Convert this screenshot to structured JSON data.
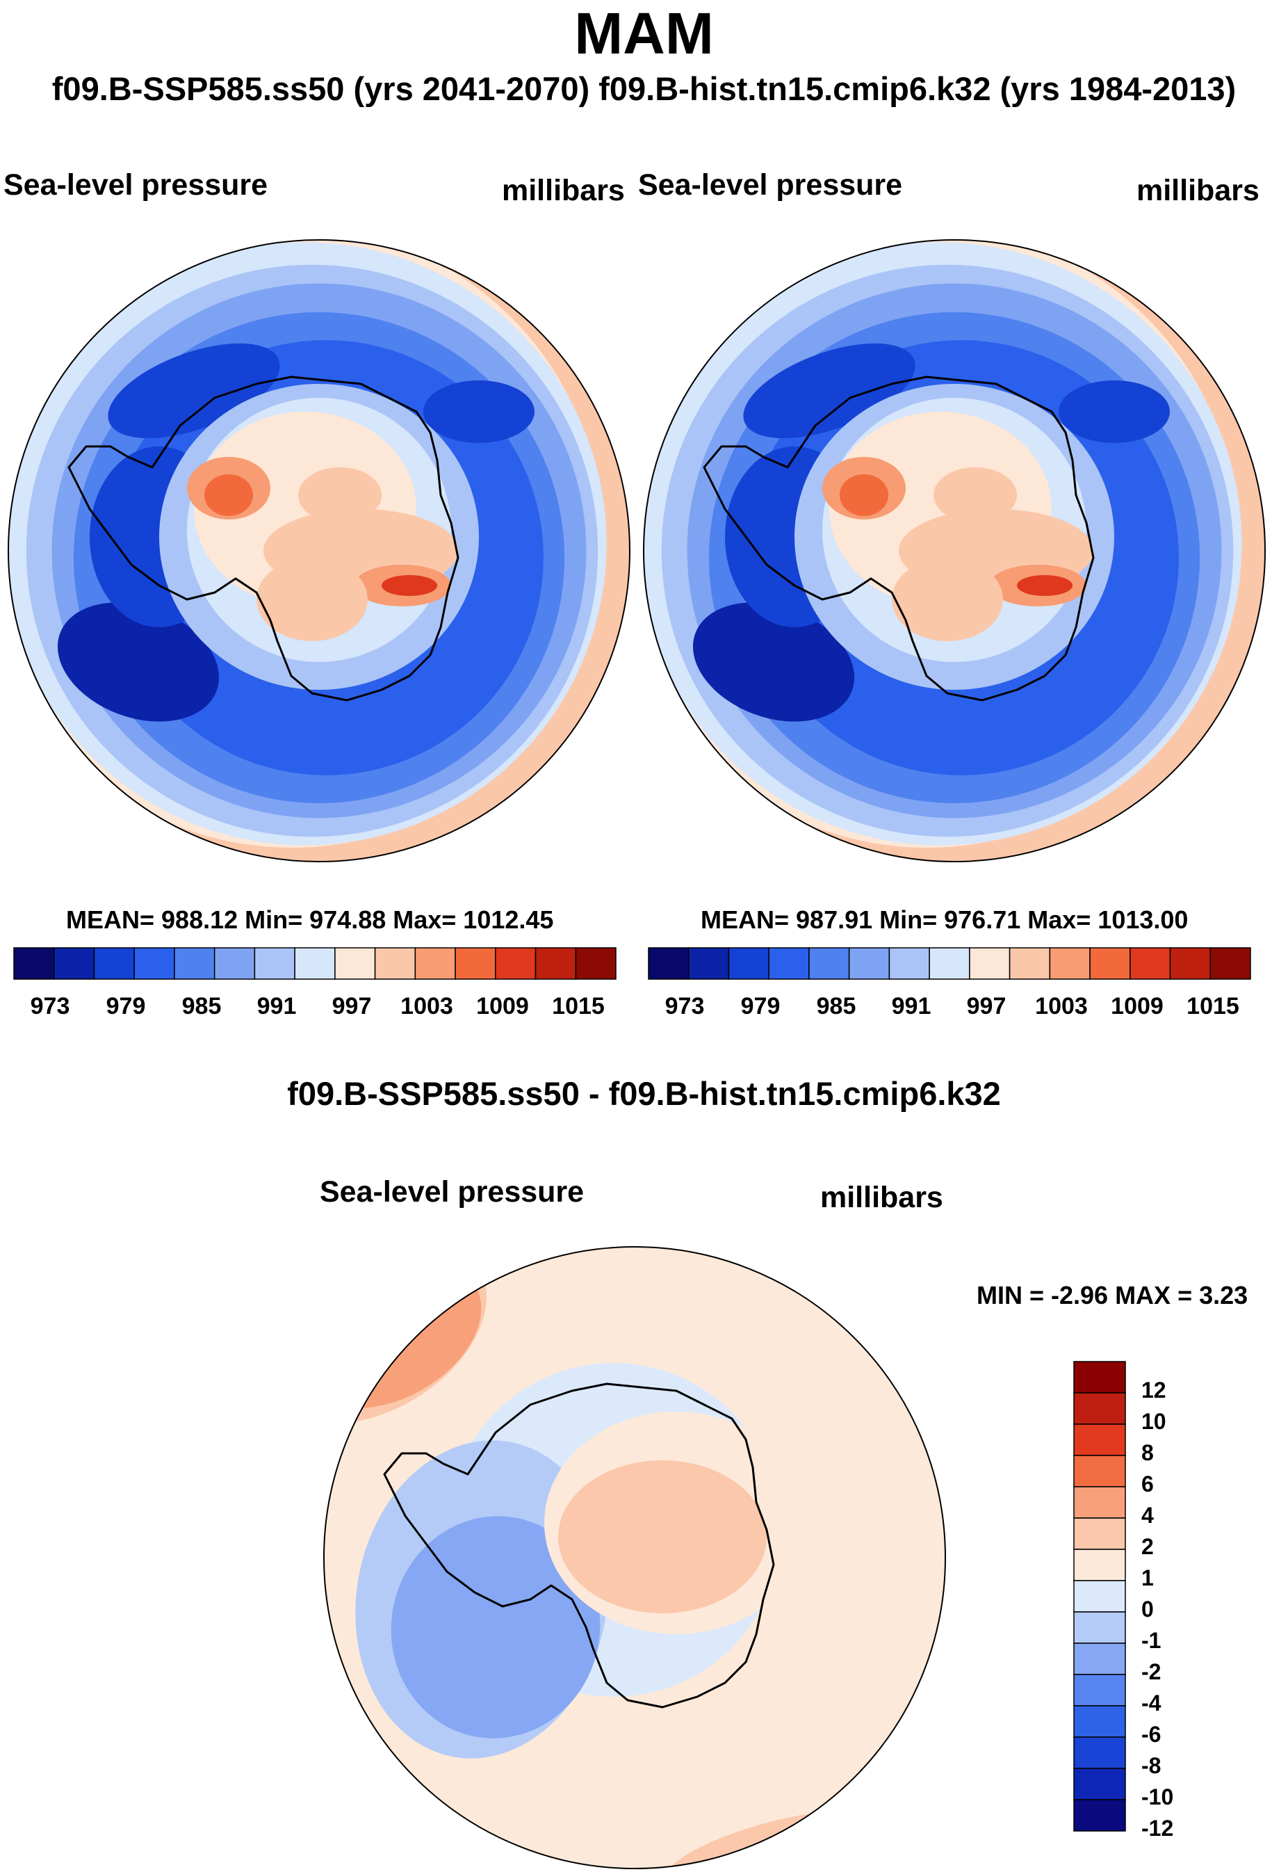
{
  "season": "MAM",
  "subtitle": "f09.B-SSP585.ss50 (yrs 2041-2070)  f09.B-hist.tn15.cmip6.k32 (yrs 1984-2013)",
  "panels": [
    {
      "var_label": "Sea-level pressure",
      "units": "millibars",
      "stats": "MEAN= 988.12  Min= 974.88  Max= 1012.45"
    },
    {
      "var_label": "Sea-level pressure",
      "units": "millibars",
      "stats": "MEAN= 987.91  Min= 976.71  Max= 1013.00"
    }
  ],
  "diff_panel": {
    "title": "f09.B-SSP585.ss50 - f09.B-hist.tn15.cmip6.k32",
    "var_label": "Sea-level pressure",
    "units": "millibars",
    "stats": "MIN =  -2.96 MAX =   3.23"
  },
  "colors": {
    "abs_scale": [
      "#08086b",
      "#0a23a8",
      "#1442d4",
      "#2a60eb",
      "#4f81ef",
      "#7fa3f3",
      "#aac4f7",
      "#d6e6fb",
      "#fde7d6",
      "#fbc7a9",
      "#f79c73",
      "#f26a3c",
      "#e0381c",
      "#c02010",
      "#8b0a04"
    ],
    "diff_scale": [
      "#0a0a80",
      "#0e26b5",
      "#1a44d6",
      "#2f63e7",
      "#5784ef",
      "#86a7f3",
      "#b4cbf8",
      "#dbe9fb",
      "#fde9d9",
      "#fbc8ab",
      "#f8a07a",
      "#f26c41",
      "#e13a1e",
      "#be1f10",
      "#8b0000"
    ]
  },
  "chart_data": [
    {
      "type": "heatmap",
      "title": "f09.B-SSP585.ss50 (yrs 2041-2070)",
      "variable": "Sea-level pressure",
      "units": "millibars",
      "projection": "south polar stereographic",
      "colorbar_ticks": [
        "973",
        "979",
        "985",
        "991",
        "997",
        "1003",
        "1009",
        "1015"
      ],
      "colorbar_levels": [
        973,
        976,
        979,
        982,
        985,
        988,
        991,
        994,
        997,
        1000,
        1003,
        1006,
        1009,
        1012,
        1015
      ],
      "mean": 988.12,
      "min": 974.88,
      "max": 1012.45
    },
    {
      "type": "heatmap",
      "title": "f09.B-hist.tn15.cmip6.k32 (yrs 1984-2013)",
      "variable": "Sea-level pressure",
      "units": "millibars",
      "projection": "south polar stereographic",
      "colorbar_ticks": [
        "973",
        "979",
        "985",
        "991",
        "997",
        "1003",
        "1009",
        "1015"
      ],
      "colorbar_levels": [
        973,
        976,
        979,
        982,
        985,
        988,
        991,
        994,
        997,
        1000,
        1003,
        1006,
        1009,
        1012,
        1015
      ],
      "mean": 987.91,
      "min": 976.71,
      "max": 1013.0
    },
    {
      "type": "heatmap",
      "title": "f09.B-SSP585.ss50 - f09.B-hist.tn15.cmip6.k32",
      "variable": "Sea-level pressure",
      "units": "millibars",
      "projection": "south polar stereographic",
      "colorbar_ticks": [
        "12",
        "10",
        "8",
        "6",
        "4",
        "2",
        "1",
        "0",
        "-1",
        "-2",
        "-4",
        "-6",
        "-8",
        "-10",
        "-12"
      ],
      "min": -2.96,
      "max": 3.23
    }
  ]
}
